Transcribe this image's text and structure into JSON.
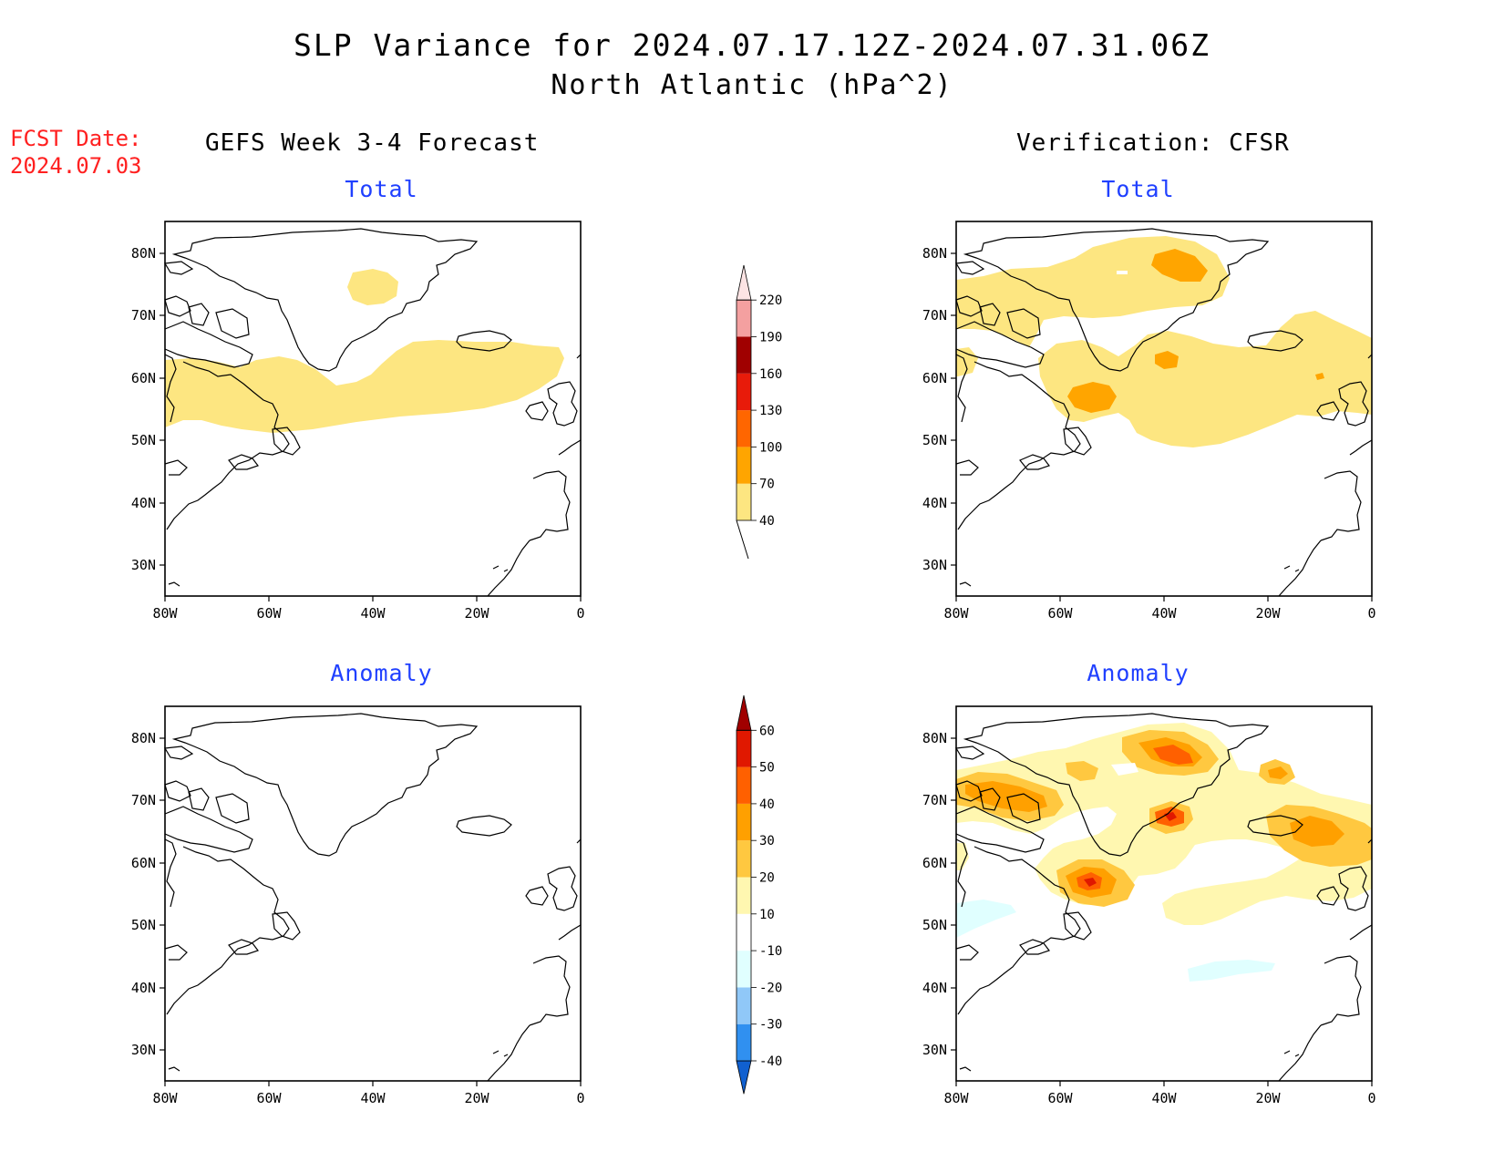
{
  "header": {
    "title": "SLP Variance for 2024.07.17.12Z-2024.07.31.06Z",
    "subtitle": "North Atlantic (hPa^2)",
    "fcst_label": "FCST Date:",
    "fcst_date": "2024.07.03"
  },
  "columns": {
    "left": "GEFS Week 3-4 Forecast",
    "right": "Verification: CFSR"
  },
  "panels": [
    {
      "id": "gefs-total",
      "title": "Total"
    },
    {
      "id": "cfsr-total",
      "title": "Total"
    },
    {
      "id": "gefs-anomaly",
      "title": "Anomaly"
    },
    {
      "id": "cfsr-anomaly",
      "title": "Anomaly"
    }
  ],
  "axes": {
    "lat_labels": [
      "80N",
      "70N",
      "60N",
      "50N",
      "40N",
      "30N"
    ],
    "lon_labels": [
      "80W",
      "60W",
      "40W",
      "20W",
      "0"
    ]
  },
  "colorbars": {
    "total": {
      "levels": [
        "40",
        "70",
        "100",
        "130",
        "160",
        "190",
        "220"
      ],
      "colors": [
        "#fde681",
        "#ffa500",
        "#ff6600",
        "#e81b0a",
        "#a00000",
        "#f4a0a0",
        "#fce4e4"
      ]
    },
    "anomaly": {
      "levels": [
        "-40",
        "-30",
        "-20",
        "-10",
        "10",
        "20",
        "30",
        "40",
        "50",
        "60"
      ],
      "colors": [
        "#1060d0",
        "#3090f0",
        "#90c8f8",
        "#e0ffff",
        "#ffffff",
        "#fff7b0",
        "#ffc840",
        "#ffa000",
        "#ff6000",
        "#e01800",
        "#a00000"
      ]
    }
  }
}
